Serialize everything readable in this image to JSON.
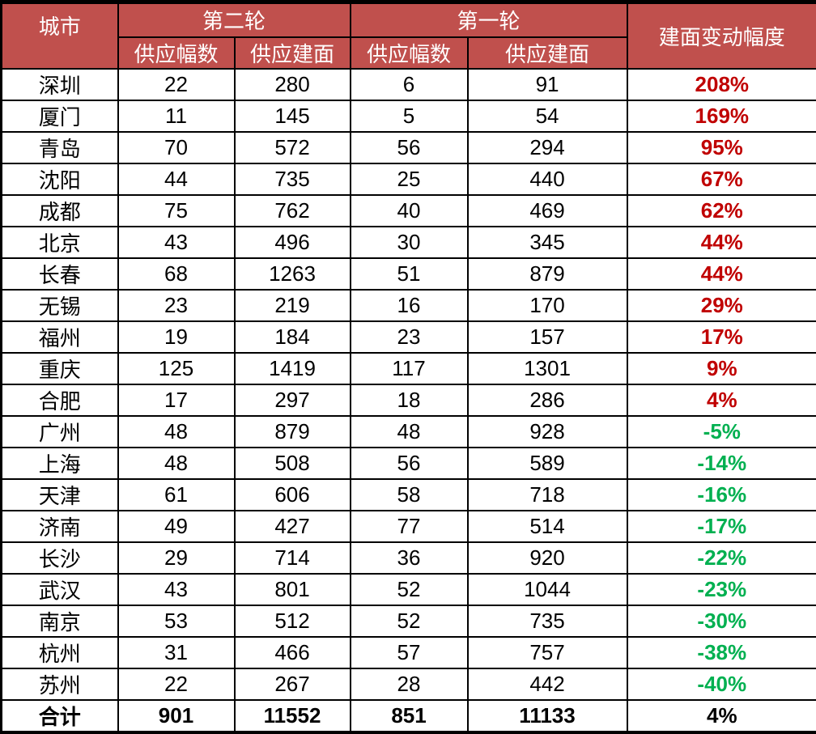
{
  "colors": {
    "header_bg": "#C0504D",
    "header_text": "#FFFFFF",
    "positive_change": "#C00000",
    "negative_change": "#00B050",
    "border": "#000000"
  },
  "table": {
    "header": {
      "city": "城市",
      "round2": "第二轮",
      "round1": "第一轮",
      "change": "建面变动幅度",
      "sub_plots": "供应幅数",
      "sub_area": "供应建面"
    }
  },
  "chart_data": {
    "type": "table",
    "columns": [
      "城市",
      "第二轮 供应幅数",
      "第二轮 供应建面",
      "第一轮 供应幅数",
      "第一轮 供应建面",
      "建面变动幅度"
    ],
    "rows": [
      [
        "深圳",
        22,
        280,
        6,
        91,
        "208%"
      ],
      [
        "厦门",
        11,
        145,
        5,
        54,
        "169%"
      ],
      [
        "青岛",
        70,
        572,
        56,
        294,
        "95%"
      ],
      [
        "沈阳",
        44,
        735,
        25,
        440,
        "67%"
      ],
      [
        "成都",
        75,
        762,
        40,
        469,
        "62%"
      ],
      [
        "北京",
        43,
        496,
        30,
        345,
        "44%"
      ],
      [
        "长春",
        68,
        1263,
        51,
        879,
        "44%"
      ],
      [
        "无锡",
        23,
        219,
        16,
        170,
        "29%"
      ],
      [
        "福州",
        19,
        184,
        23,
        157,
        "17%"
      ],
      [
        "重庆",
        125,
        1419,
        117,
        1301,
        "9%"
      ],
      [
        "合肥",
        17,
        297,
        18,
        286,
        "4%"
      ],
      [
        "广州",
        48,
        879,
        48,
        928,
        "-5%"
      ],
      [
        "上海",
        48,
        508,
        56,
        589,
        "-14%"
      ],
      [
        "天津",
        61,
        606,
        58,
        718,
        "-16%"
      ],
      [
        "济南",
        49,
        427,
        77,
        514,
        "-17%"
      ],
      [
        "长沙",
        29,
        714,
        36,
        920,
        "-22%"
      ],
      [
        "武汉",
        43,
        801,
        52,
        1044,
        "-23%"
      ],
      [
        "南京",
        53,
        512,
        52,
        735,
        "-30%"
      ],
      [
        "杭州",
        31,
        466,
        57,
        757,
        "-38%"
      ],
      [
        "苏州",
        22,
        267,
        28,
        442,
        "-40%"
      ]
    ],
    "total_row": [
      "合计",
      901,
      11552,
      851,
      11133,
      "4%"
    ],
    "notes": "positive change values shown bold red, negative bold green, total row bold black"
  }
}
